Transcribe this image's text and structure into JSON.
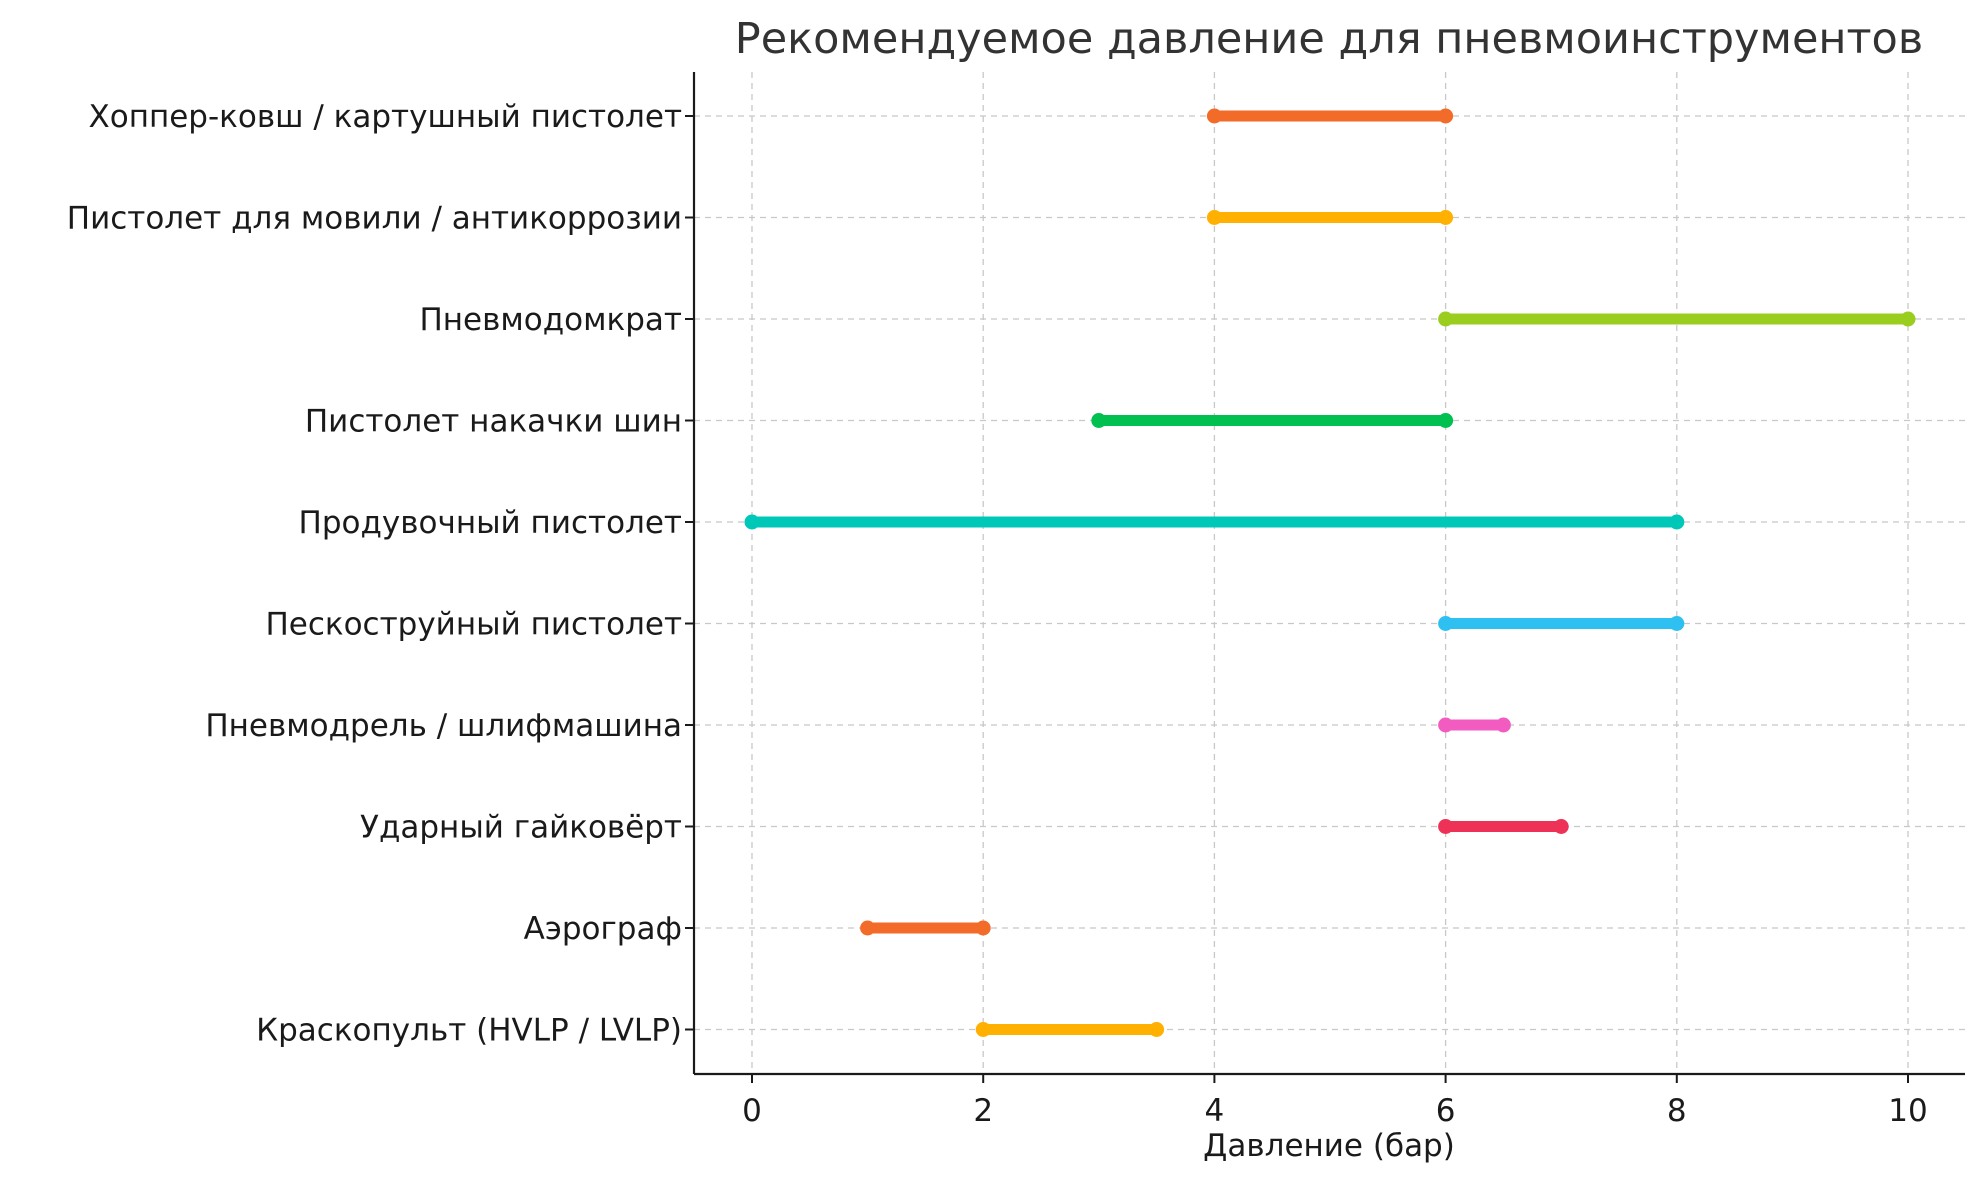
{
  "chart_data": {
    "type": "range",
    "title": "Рекомендуемое давление для пневмоинструментов",
    "xlabel": "Давление (бар)",
    "ylabel": "",
    "xlim": [
      -0.5,
      10.5
    ],
    "xticks": [
      0,
      2,
      4,
      6,
      8,
      10
    ],
    "grid": true,
    "categories": [
      "Краскопульт (HVLP / LVLP)",
      "Аэрограф",
      "Ударный гайковёрт",
      "Пневмодрель / шлифмашина",
      "Пескоструйный пистолет",
      "Продувочный пистолет",
      "Пистолет накачки шин",
      "Пневмодомкрат",
      "Пистолет для мовили / антикоррозии",
      "Хоппер-ковш / картушный пистолет"
    ],
    "ranges": [
      {
        "min": 2,
        "max": 3.5,
        "color": "#FFB000"
      },
      {
        "min": 1,
        "max": 2,
        "color": "#F26B28"
      },
      {
        "min": 6,
        "max": 7,
        "color": "#EE3156"
      },
      {
        "min": 6,
        "max": 6.5,
        "color": "#F25CC0"
      },
      {
        "min": 6,
        "max": 8,
        "color": "#2EC0F0"
      },
      {
        "min": 0,
        "max": 8,
        "color": "#00C8B8"
      },
      {
        "min": 3,
        "max": 6,
        "color": "#00C050"
      },
      {
        "min": 6,
        "max": 10,
        "color": "#9ACD1E"
      },
      {
        "min": 4,
        "max": 6,
        "color": "#FFB000"
      },
      {
        "min": 4,
        "max": 6,
        "color": "#F26B28"
      }
    ]
  }
}
